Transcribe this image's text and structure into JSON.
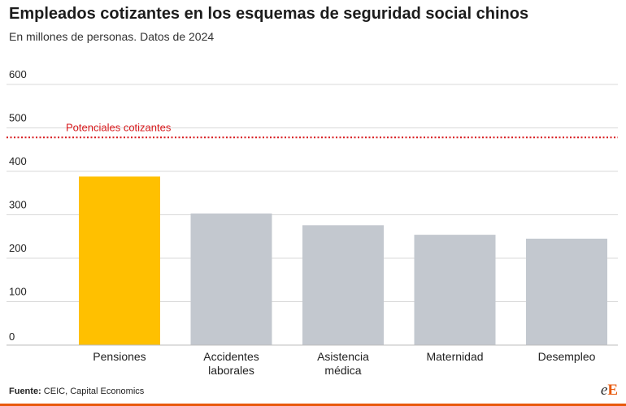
{
  "title": "Empleados cotizantes en los esquemas de seguridad social chinos",
  "subtitle": "En millones de personas. Datos de 2024",
  "source_label": "Fuente:",
  "source_text": "CEIC, Capital Economics",
  "logo": {
    "small": "e",
    "big": "E",
    "accent_color": "#e8590c"
  },
  "colors": {
    "highlight": "#ffc000",
    "bar": "#c3c8cf",
    "reference": "#d7191c",
    "grid": "#d9d9d9"
  },
  "chart_data": {
    "type": "bar",
    "categories": [
      "Pensiones",
      "Accidentes laborales",
      "Asistencia médica",
      "Maternidad",
      "Desempleo"
    ],
    "category_lines": [
      [
        "Pensiones"
      ],
      [
        "Accidentes",
        "laborales"
      ],
      [
        "Asistencia",
        "médica"
      ],
      [
        "Maternidad"
      ],
      [
        "Desempleo"
      ]
    ],
    "values": [
      388,
      303,
      276,
      254,
      245
    ],
    "highlight_index": 0,
    "yticks": [
      0,
      100,
      200,
      300,
      400,
      500,
      600
    ],
    "ylim": [
      0,
      600
    ],
    "reference_line": {
      "value": 478,
      "label": "Potenciales cotizantes",
      "style": "dotted"
    },
    "grid": true,
    "legend": "none"
  }
}
